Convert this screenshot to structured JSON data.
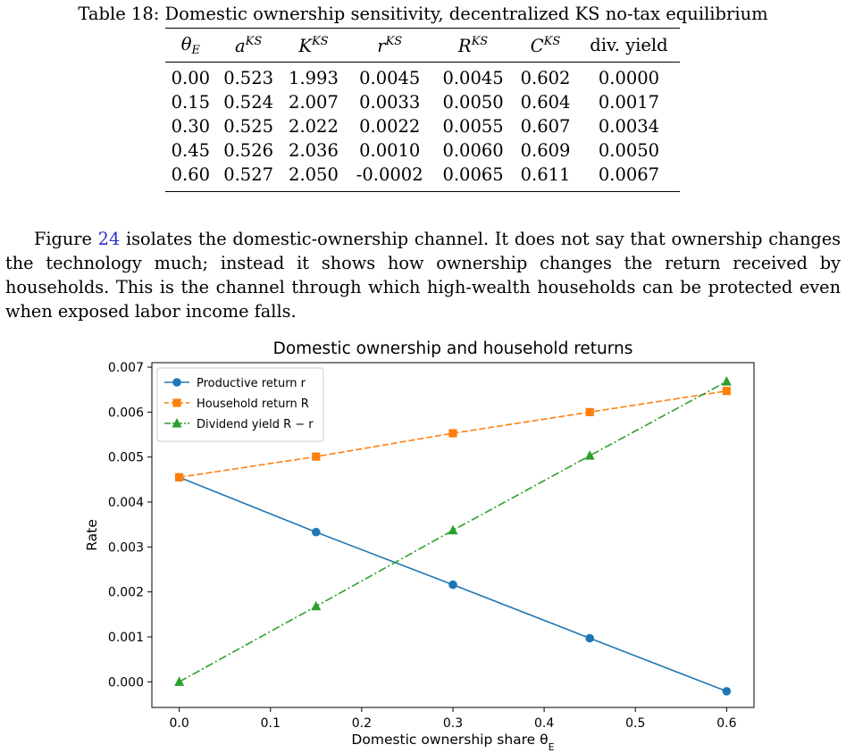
{
  "table": {
    "caption": "Table 18: Domestic ownership sensitivity, decentralized KS no-tax equilibrium",
    "headers": [
      {
        "base": "θ",
        "sub": "E",
        "sup": ""
      },
      {
        "base": "a",
        "sub": "",
        "sup": "KS"
      },
      {
        "base": "K",
        "sub": "",
        "sup": "KS"
      },
      {
        "base": "r",
        "sub": "",
        "sup": "KS"
      },
      {
        "base": "R",
        "sub": "",
        "sup": "KS"
      },
      {
        "base": "C",
        "sub": "",
        "sup": "KS"
      },
      {
        "base": "div. yield",
        "sub": "",
        "sup": "",
        "plain": true
      }
    ],
    "rows": [
      [
        "0.00",
        "0.523",
        "1.993",
        "0.0045",
        "0.0045",
        "0.602",
        "0.0000"
      ],
      [
        "0.15",
        "0.524",
        "2.007",
        "0.0033",
        "0.0050",
        "0.604",
        "0.0017"
      ],
      [
        "0.30",
        "0.525",
        "2.022",
        "0.0022",
        "0.0055",
        "0.607",
        "0.0034"
      ],
      [
        "0.45",
        "0.526",
        "2.036",
        "0.0010",
        "0.0060",
        "0.609",
        "0.0050"
      ],
      [
        "0.60",
        "0.527",
        "2.050",
        "-0.0002",
        "0.0065",
        "0.611",
        "0.0067"
      ]
    ]
  },
  "paragraph": {
    "ref_prefix": "Figure ",
    "ref_number": "24",
    "rest": " isolates the domestic-ownership channel. It does not say that ownership changes the technology much; instead it shows how ownership changes the return received by households. This is the channel through which high-wealth households can be protected even when exposed labor income falls."
  },
  "chart_data": {
    "type": "line",
    "title": "Domestic ownership and household returns",
    "xlabel": "Domestic ownership share θ_E",
    "ylabel": "Rate",
    "x": [
      0.0,
      0.15,
      0.3,
      0.45,
      0.6
    ],
    "xlim": [
      -0.03,
      0.63
    ],
    "ylim": [
      -0.00057,
      0.0071
    ],
    "xticks": [
      "0.0",
      "0.1",
      "0.2",
      "0.3",
      "0.4",
      "0.5",
      "0.6"
    ],
    "yticks": [
      "0.000",
      "0.001",
      "0.002",
      "0.003",
      "0.004",
      "0.005",
      "0.006",
      "0.007"
    ],
    "grid": false,
    "legend_position": "upper-left",
    "series": [
      {
        "name": "Productive return r",
        "color": "#1f77b4",
        "marker": "circle",
        "linestyle": "solid",
        "values": [
          0.00455,
          0.00333,
          0.00216,
          0.00097,
          -0.00021
        ]
      },
      {
        "name": "Household return R",
        "color": "#ff7f0e",
        "marker": "square",
        "linestyle": "dashed",
        "values": [
          0.00455,
          0.00501,
          0.00553,
          0.006,
          0.00647
        ]
      },
      {
        "name": "Dividend yield R − r",
        "color": "#2ca02c",
        "marker": "triangle",
        "linestyle": "dashdot",
        "values": [
          0.0,
          0.00168,
          0.00337,
          0.00503,
          0.00668
        ]
      }
    ]
  }
}
